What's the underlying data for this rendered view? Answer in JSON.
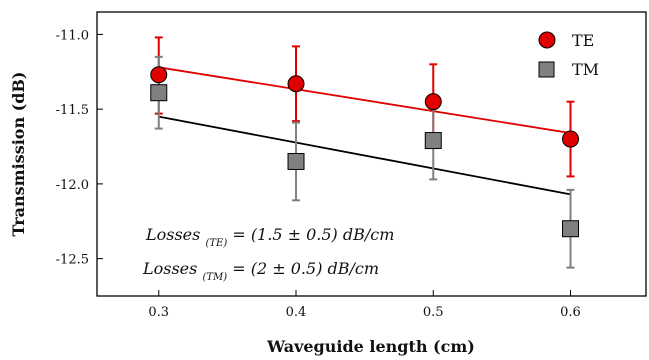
{
  "chart_data": {
    "type": "scatter",
    "title": "",
    "xlabel": "Waveguide length (cm)",
    "ylabel": "Transmission (dB)",
    "xlim": [
      0.255,
      0.655
    ],
    "ylim": [
      -12.75,
      -10.85
    ],
    "xticks": [
      0.3,
      0.4,
      0.5,
      0.6
    ],
    "xtick_labels": [
      "0.3",
      "0.4",
      "0.5",
      "0.6"
    ],
    "yticks": [
      -11.0,
      -11.5,
      -12.0,
      -12.5
    ],
    "ytick_labels": [
      "-11.0",
      "-11.5",
      "-12.0",
      "-12.5"
    ],
    "grid": false,
    "legend_position": "top-right",
    "series": [
      {
        "name": "TE",
        "marker": "circle",
        "color": "#e00000",
        "edge_color": "#000000",
        "error_color": "#e00000",
        "x": [
          0.3,
          0.4,
          0.5,
          0.6
        ],
        "y": [
          -11.27,
          -11.33,
          -11.45,
          -11.7
        ],
        "yerr_low": [
          0.26,
          0.25,
          0.25,
          0.25
        ],
        "yerr_high": [
          0.25,
          0.25,
          0.25,
          0.25
        ],
        "fit": {
          "x": [
            0.3,
            0.6
          ],
          "y": [
            -11.22,
            -11.66
          ],
          "color": "#e00000"
        }
      },
      {
        "name": "TM",
        "marker": "square",
        "color": "#808080",
        "edge_color": "#000000",
        "error_color": "#808080",
        "x": [
          0.3,
          0.4,
          0.5,
          0.6
        ],
        "y": [
          -11.39,
          -11.85,
          -11.71,
          -12.3
        ],
        "yerr_low": [
          0.24,
          0.26,
          0.26,
          0.26
        ],
        "yerr_high": [
          0.24,
          0.26,
          0.26,
          0.26
        ],
        "fit": {
          "x": [
            0.3,
            0.6
          ],
          "y": [
            -11.55,
            -12.07
          ],
          "color": "#000000"
        }
      }
    ],
    "annotations": [
      {
        "prefix": "Losses ",
        "sub": "(TE)",
        "suffix": " = (1.5 ± 0.5) dB/cm"
      },
      {
        "prefix": "Losses ",
        "sub": "(TM)",
        "suffix": " = (2 ± 0.5) dB/cm"
      }
    ]
  }
}
